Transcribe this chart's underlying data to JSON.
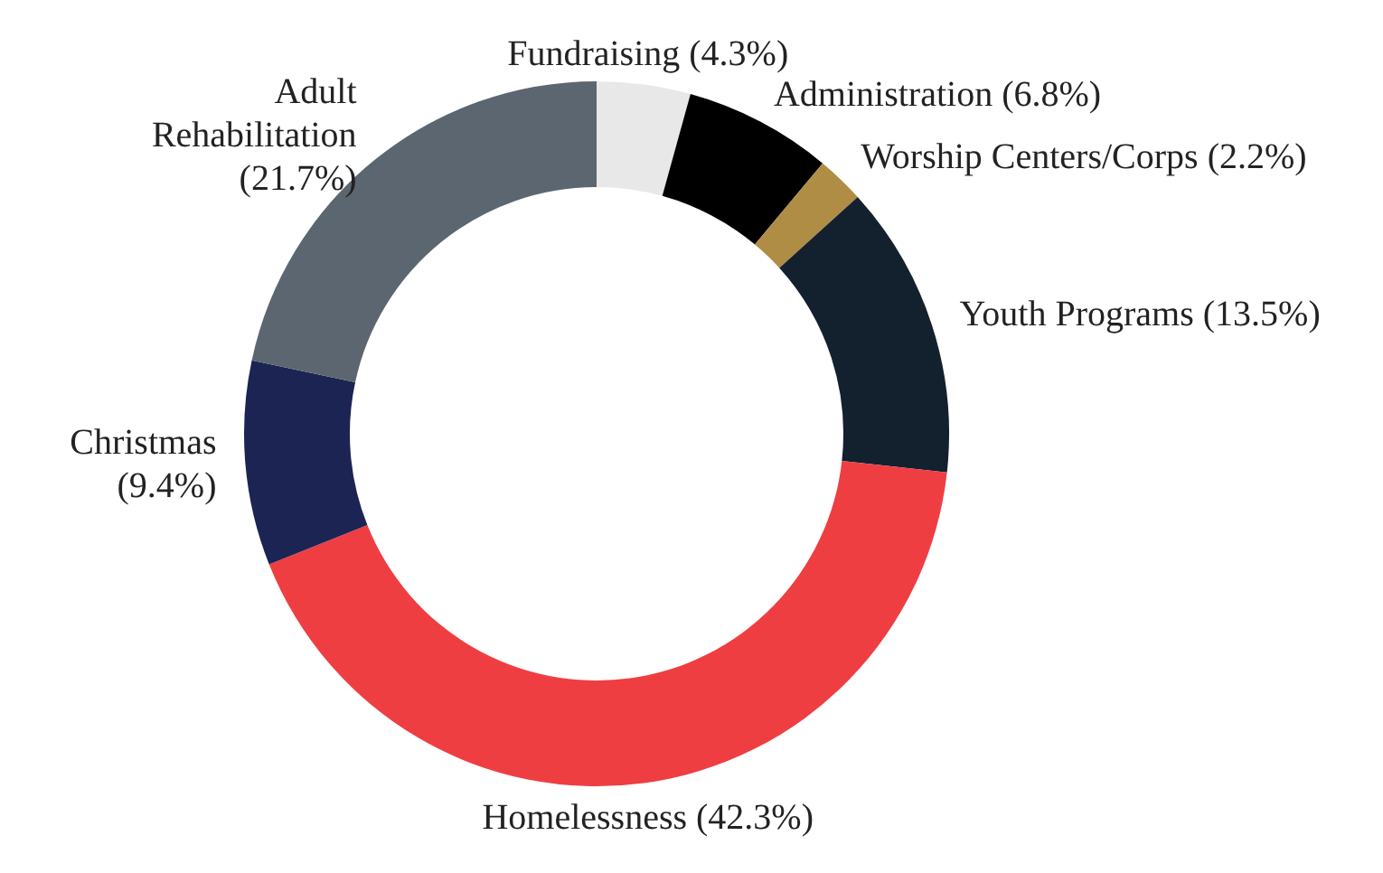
{
  "chart_data": {
    "type": "donut",
    "categories": [
      "Fundraising",
      "Administration",
      "Worship Centers/Corps",
      "Youth Programs",
      "Homelessness",
      "Christmas",
      "Adult Rehabilitation"
    ],
    "values": [
      4.3,
      6.8,
      2.2,
      13.5,
      42.3,
      9.4,
      21.7
    ],
    "value_labels": [
      "(4.3%)",
      "(6.8%)",
      "(2.2%)",
      "(13.5%)",
      "(42.3%)",
      "(9.4%)",
      "(21.7%)"
    ],
    "colors": [
      "#e8e8e8",
      "#000000",
      "#b08d45",
      "#13212e",
      "#ef3e42",
      "#1c2453",
      "#5c6670"
    ],
    "legend": false
  }
}
